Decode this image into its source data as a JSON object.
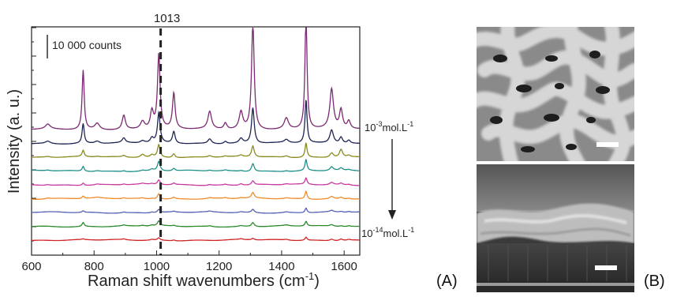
{
  "chart_data": {
    "type": "line",
    "xlabel_main": "Raman shift wavenumbers (cm",
    "xlabel_sup": "-1",
    "xlabel_tail": ")",
    "ylabel": "Intensity (a. u.)",
    "xlim": [
      600,
      1650
    ],
    "xticks": [
      "600",
      "800",
      "1000",
      "1200",
      "1400",
      "1600"
    ],
    "marker_value": "1013",
    "marker_x": 1013,
    "scale_label": "10 000 counts",
    "conc_top_base": "10",
    "conc_top_exp": "-3",
    "conc_top_unit": "mol.L",
    "conc_top_unit_exp": "-1",
    "conc_bottom_base": "10",
    "conc_bottom_exp": "-14",
    "conc_bottom_unit": "mol.L",
    "conc_bottom_unit_exp": "-1",
    "peaks": [
      {
        "x": 652,
        "w": 9
      },
      {
        "x": 765,
        "w": 4
      },
      {
        "x": 810,
        "w": 9
      },
      {
        "x": 895,
        "w": 6
      },
      {
        "x": 955,
        "w": 8
      },
      {
        "x": 985,
        "w": 6
      },
      {
        "x": 1007,
        "w": 5
      },
      {
        "x": 1055,
        "w": 5
      },
      {
        "x": 1170,
        "w": 7
      },
      {
        "x": 1220,
        "w": 6
      },
      {
        "x": 1270,
        "w": 7
      },
      {
        "x": 1308,
        "w": 5
      },
      {
        "x": 1415,
        "w": 8
      },
      {
        "x": 1478,
        "w": 4
      },
      {
        "x": 1560,
        "w": 7
      },
      {
        "x": 1590,
        "w": 6
      },
      {
        "x": 1615,
        "w": 6
      }
    ],
    "series": [
      {
        "color": "#7b2a73",
        "offset": 0,
        "amps": [
          6,
          75,
          8,
          18,
          10,
          22,
          95,
          45,
          22,
          8,
          22,
          135,
          14,
          150,
          50,
          24,
          10
        ]
      },
      {
        "color": "#1e2454",
        "offset": -1,
        "amps": [
          3,
          25,
          3,
          6,
          3,
          6,
          38,
          15,
          6,
          3,
          6,
          45,
          4,
          55,
          17,
          8,
          4
        ]
      },
      {
        "color": "#8a8a1f",
        "offset": -2,
        "amps": [
          1,
          8,
          1,
          2,
          4,
          3,
          16,
          5,
          2,
          1,
          2,
          14,
          2,
          18,
          6,
          10,
          2
        ]
      },
      {
        "color": "#1e9089",
        "offset": -3,
        "amps": [
          1,
          6,
          1,
          1,
          1,
          2,
          12,
          3,
          1,
          1,
          1,
          10,
          1,
          14,
          5,
          3,
          1
        ]
      },
      {
        "color": "#c83aa0",
        "offset": -4,
        "amps": [
          1,
          3,
          1,
          1,
          1,
          1,
          6,
          2,
          1,
          1,
          2,
          5,
          1,
          8,
          3,
          2,
          1
        ]
      },
      {
        "color": "#f08a2a",
        "offset": -5,
        "amps": [
          1,
          3,
          1,
          1,
          1,
          1,
          7,
          2,
          1,
          1,
          1,
          7,
          1,
          10,
          3,
          2,
          1
        ]
      },
      {
        "color": "#5660b8",
        "offset": -6,
        "amps": [
          0,
          2,
          0,
          1,
          0,
          1,
          4,
          1,
          1,
          0,
          1,
          4,
          1,
          6,
          2,
          1,
          1
        ]
      },
      {
        "color": "#2b8a2b",
        "offset": -7,
        "amps": [
          0,
          5,
          0,
          1,
          1,
          1,
          6,
          1,
          1,
          0,
          1,
          5,
          1,
          6,
          2,
          1,
          1
        ]
      },
      {
        "color": "#d02525",
        "offset": -8,
        "amps": [
          0,
          1,
          0,
          1,
          0,
          1,
          3,
          1,
          0,
          0,
          1,
          2,
          1,
          4,
          2,
          2,
          1
        ]
      }
    ]
  },
  "panel_a_label": "(A)",
  "panel_b_label": "(B)"
}
